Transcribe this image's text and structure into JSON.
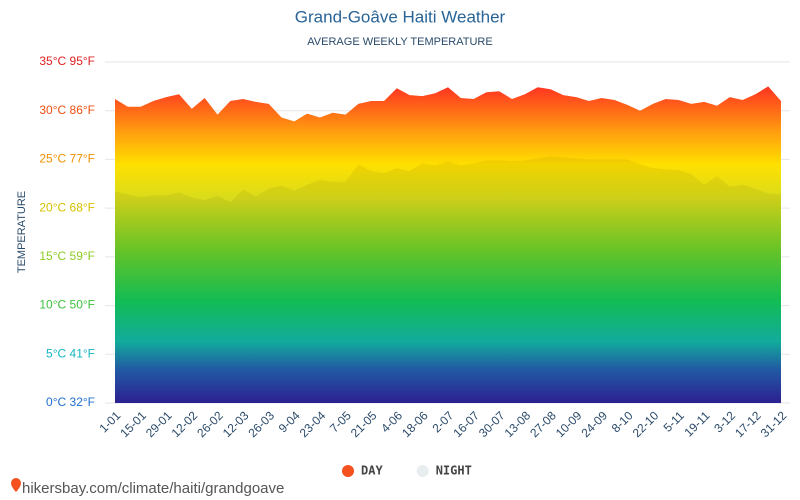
{
  "chart_data": {
    "type": "area",
    "title": "Grand-Goâve Haiti Weather",
    "subtitle": "AVERAGE WEEKLY TEMPERATURE",
    "y_label": "TEMPERATURE",
    "source": "hikersbay.com/climate/haiti/grandgoave",
    "categories": [
      "1-01",
      null,
      "15-01",
      null,
      "29-01",
      null,
      "12-02",
      null,
      "26-02",
      null,
      "12-03",
      null,
      "26-03",
      null,
      "9-04",
      null,
      "23-04",
      null,
      "7-05",
      null,
      "21-05",
      null,
      "4-06",
      null,
      "18-06",
      null,
      "2-07",
      null,
      "16-07",
      null,
      "30-07",
      null,
      "13-08",
      null,
      "27-08",
      null,
      "10-09",
      null,
      "24-09",
      null,
      "8-10",
      null,
      "22-10",
      null,
      "5-11",
      null,
      "19-11",
      null,
      "3-12",
      null,
      "17-12",
      null,
      "31-12"
    ],
    "series": [
      {
        "name": "DAY",
        "color": "#f4511e",
        "values": [
          31.2,
          30.4,
          30.4,
          31.0,
          31.4,
          31.7,
          30.2,
          31.3,
          29.6,
          31.0,
          31.2,
          30.9,
          30.7,
          29.3,
          28.9,
          29.7,
          29.3,
          29.8,
          29.6,
          30.7,
          31.0,
          31.0,
          32.3,
          31.6,
          31.5,
          31.8,
          32.4,
          31.3,
          31.2,
          31.9,
          32.0,
          31.2,
          31.7,
          32.4,
          32.2,
          31.6,
          31.4,
          31.0,
          31.3,
          31.1,
          30.6,
          30.0,
          30.7,
          31.2,
          31.1,
          30.7,
          30.9,
          30.5,
          31.4,
          31.1,
          31.7,
          32.5,
          31.0
        ]
      },
      {
        "name": "NIGHT",
        "color": "#e8eef0",
        "values": [
          21.7,
          21.4,
          21.1,
          21.3,
          21.3,
          21.6,
          21.1,
          20.8,
          21.3,
          20.6,
          21.9,
          21.2,
          22.0,
          22.3,
          21.8,
          22.4,
          22.9,
          22.7,
          22.7,
          24.5,
          23.8,
          23.6,
          24.1,
          23.8,
          24.6,
          24.4,
          24.8,
          24.4,
          24.6,
          24.9,
          24.9,
          24.8,
          24.9,
          25.1,
          25.3,
          25.2,
          25.1,
          25.0,
          25.0,
          25.0,
          25.0,
          24.5,
          24.1,
          24.0,
          23.9,
          23.5,
          22.4,
          23.3,
          22.2,
          22.4,
          22.0,
          21.5,
          21.4
        ]
      }
    ],
    "ylim": [
      0,
      35
    ],
    "yticks": [
      {
        "value": 0,
        "label": "0°C 32°F"
      },
      {
        "value": 5,
        "label": "5°C 41°F"
      },
      {
        "value": 10,
        "label": "10°C 50°F"
      },
      {
        "value": 15,
        "label": "15°C 59°F"
      },
      {
        "value": 20,
        "label": "20°C 68°F"
      },
      {
        "value": 25,
        "label": "25°C 77°F"
      },
      {
        "value": 30,
        "label": "30°C 86°F"
      },
      {
        "value": 35,
        "label": "35°C 95°F"
      }
    ],
    "grid": true
  }
}
